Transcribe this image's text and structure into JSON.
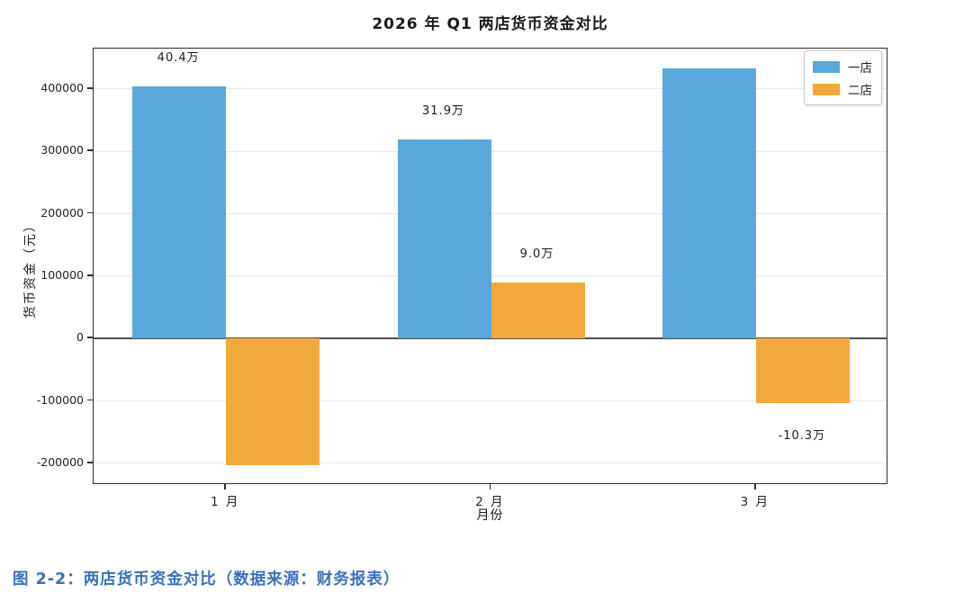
{
  "chart_data": {
    "type": "bar",
    "title": "2026 年 Q1 两店货币资金对比",
    "categories": [
      "1 月",
      "2 月",
      "3 月"
    ],
    "xlabel": "月份",
    "ylabel": "货币资金（元）",
    "ylim": [
      -234800,
      464800
    ],
    "yticks": [
      400000,
      300000,
      200000,
      100000,
      0,
      -100000,
      -200000
    ],
    "ytick_labels": [
      "400000",
      "300000",
      "200000",
      "100000",
      "0",
      "-100000",
      "-200000"
    ],
    "grid": true,
    "zero_line": true,
    "legend_position": "upper right",
    "series": [
      {
        "name": "一店",
        "color": "#5AA7DB",
        "values": [
          404000,
          319000,
          433000
        ],
        "bar_labels": [
          "40.4万",
          "31.9万",
          ""
        ]
      },
      {
        "name": "二店",
        "color": "#F2A93C",
        "values": [
          -203000,
          90000,
          -103000
        ],
        "bar_labels": [
          "",
          "9.0万",
          "-10.3万"
        ]
      }
    ]
  },
  "caption": {
    "text": "图 2-2：两店货币资金对比（数据来源：财务报表）",
    "color": "#3A72B8"
  }
}
